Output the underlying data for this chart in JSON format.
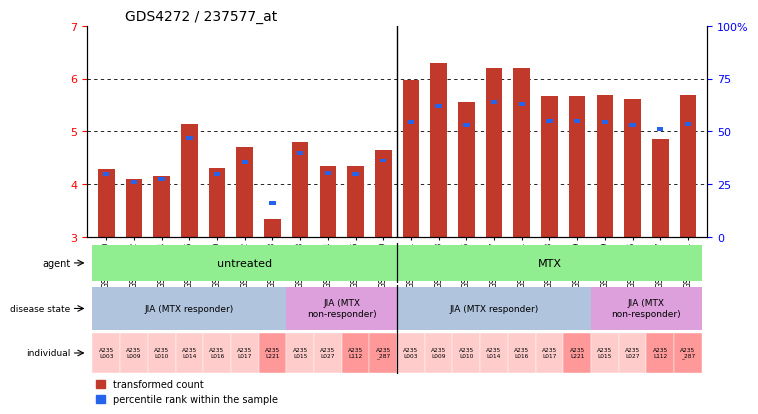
{
  "title": "GDS4272 / 237577_at",
  "samples": [
    "GSM580950",
    "GSM580952",
    "GSM580954",
    "GSM580956",
    "GSM580960",
    "GSM580962",
    "GSM580968",
    "GSM580958",
    "GSM580964",
    "GSM580966",
    "GSM580970",
    "GSM580951",
    "GSM580953",
    "GSM580955",
    "GSM580957",
    "GSM580961",
    "GSM580963",
    "GSM580969",
    "GSM580959",
    "GSM580965",
    "GSM580967",
    "GSM580971"
  ],
  "red_values": [
    4.28,
    4.1,
    4.15,
    5.15,
    4.3,
    4.7,
    3.35,
    4.8,
    4.35,
    4.35,
    4.65,
    5.97,
    6.3,
    5.55,
    6.2,
    6.2,
    5.68,
    5.68,
    5.7,
    5.62,
    4.85,
    5.7
  ],
  "blue_values": [
    4.2,
    4.05,
    4.1,
    4.87,
    4.2,
    4.43,
    3.65,
    4.6,
    4.22,
    4.2,
    4.45,
    5.18,
    5.48,
    5.12,
    5.55,
    5.52,
    5.2,
    5.2,
    5.18,
    5.13,
    5.05,
    5.15
  ],
  "ylim_left": [
    3,
    7
  ],
  "ylim_right": [
    0,
    100
  ],
  "yticks_left": [
    3,
    4,
    5,
    6,
    7
  ],
  "yticks_right": [
    0,
    25,
    50,
    75,
    100
  ],
  "ytick_labels_right": [
    "0",
    "25",
    "50",
    "75",
    "100%"
  ],
  "bar_width": 0.6,
  "red_color": "#C0392B",
  "blue_color": "#2563EB",
  "separator_after": 10,
  "agent_groups": [
    {
      "label": "untreated",
      "start": 0,
      "end": 10,
      "color": "#90EE90"
    },
    {
      "label": "MTX",
      "start": 11,
      "end": 21,
      "color": "#90EE90"
    }
  ],
  "disease_groups": [
    {
      "label": "JIA (MTX responder)",
      "start": 0,
      "end": 6,
      "color": "#B0C4DE"
    },
    {
      "label": "JIA (MTX\nnon-responder)",
      "start": 7,
      "end": 10,
      "color": "#DDA0DD"
    },
    {
      "label": "JIA (MTX responder)",
      "start": 11,
      "end": 17,
      "color": "#B0C4DE"
    },
    {
      "label": "JIA (MTX\nnon-responder)",
      "start": 18,
      "end": 21,
      "color": "#DDA0DD"
    }
  ],
  "individuals": [
    "A235\nL003",
    "A235\nL009",
    "A235\nL010",
    "A235\nL014",
    "A235\nL016",
    "A235\nL017",
    "A235\nL221",
    "A235\nL015",
    "A235\nL027",
    "A235\nL112",
    "A235\n_287",
    "A235\nL003",
    "A235\nL009",
    "A235\nL010",
    "A235\nL014",
    "A235\nL016",
    "A235\nL017",
    "A235\nL221",
    "A235\nL015",
    "A235\nL027",
    "A235\nL112",
    "A235\n_287"
  ],
  "individual_colors": [
    "#FFCCCC",
    "#FFCCCC",
    "#FFCCCC",
    "#FFCCCC",
    "#FFCCCC",
    "#FFCCCC",
    "#FF9999",
    "#FFCCCC",
    "#FFCCCC",
    "#FF9999",
    "#FF9999",
    "#FFCCCC",
    "#FFCCCC",
    "#FFCCCC",
    "#FFCCCC",
    "#FFCCCC",
    "#FFCCCC",
    "#FF9999",
    "#FFCCCC",
    "#FFCCCC",
    "#FF9999",
    "#FF9999"
  ],
  "grid_lines": [
    4,
    5,
    6
  ],
  "legend_labels": [
    "transformed count",
    "percentile rank within the sample"
  ],
  "row_labels": [
    "agent",
    "disease state",
    "individual"
  ]
}
